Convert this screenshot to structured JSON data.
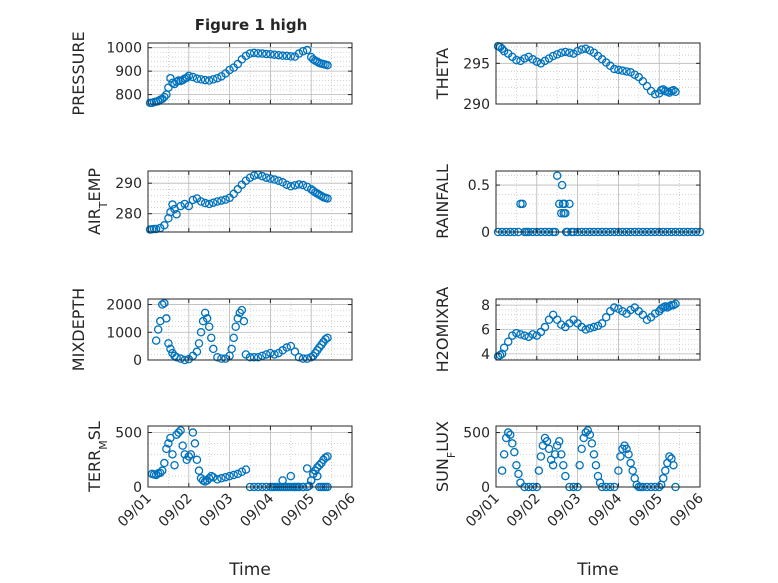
{
  "figure_title": "Figure 1 high",
  "colors": {
    "marker": "#0072bd",
    "axis": "#262626",
    "grid": "#b8b8b8",
    "background": "#ffffff"
  },
  "chart_data": [
    {
      "type": "scatter",
      "id": "pressure",
      "title": "Figure 1 high",
      "ylabel": "PRESSURE",
      "ylabel_sub": "",
      "xlabel": "",
      "ylim": [
        760,
        1020
      ],
      "yticks": [
        800,
        900,
        1000
      ],
      "ytick_labels": [
        "800",
        "900",
        "1000"
      ],
      "xlim": [
        "09/01",
        "09/06"
      ],
      "xticks": [],
      "xtick_labels": [],
      "grid": true,
      "marker": "open-circle",
      "x": [
        0.05,
        0.1,
        0.15,
        0.2,
        0.25,
        0.3,
        0.35,
        0.4,
        0.45,
        0.5,
        0.55,
        0.6,
        0.65,
        0.7,
        0.75,
        0.8,
        0.85,
        0.9,
        0.95,
        1.0,
        1.1,
        1.2,
        1.3,
        1.4,
        1.5,
        1.6,
        1.7,
        1.8,
        1.9,
        2.0,
        2.1,
        2.2,
        2.3,
        2.4,
        2.5,
        2.6,
        2.7,
        2.8,
        2.9,
        3.0,
        3.1,
        3.2,
        3.3,
        3.4,
        3.5,
        3.6,
        3.7,
        3.8,
        3.9,
        4.0,
        4.05,
        4.1,
        4.15,
        4.2,
        4.25,
        4.3,
        4.35,
        4.4
      ],
      "y": [
        765,
        765,
        768,
        770,
        772,
        778,
        782,
        790,
        800,
        830,
        870,
        850,
        845,
        855,
        860,
        858,
        862,
        868,
        872,
        880,
        875,
        868,
        865,
        862,
        860,
        865,
        870,
        878,
        890,
        905,
        915,
        930,
        950,
        965,
        975,
        978,
        976,
        975,
        973,
        972,
        970,
        968,
        966,
        965,
        963,
        962,
        975,
        985,
        990,
        960,
        950,
        945,
        940,
        935,
        932,
        930,
        928,
        925
      ]
    },
    {
      "type": "scatter",
      "id": "theta",
      "ylabel": "THETA",
      "ylabel_sub": "",
      "xlabel": "",
      "ylim": [
        290,
        297.5
      ],
      "yticks": [
        290,
        295
      ],
      "ytick_labels": [
        "290",
        "295"
      ],
      "xlim": [
        "09/01",
        "09/06"
      ],
      "xticks": [],
      "xtick_labels": [],
      "grid": true,
      "marker": "open-circle",
      "x": [
        0.05,
        0.1,
        0.15,
        0.2,
        0.3,
        0.4,
        0.5,
        0.6,
        0.7,
        0.8,
        0.9,
        1.0,
        1.1,
        1.2,
        1.3,
        1.4,
        1.5,
        1.6,
        1.7,
        1.8,
        1.9,
        2.0,
        2.1,
        2.2,
        2.3,
        2.4,
        2.5,
        2.6,
        2.7,
        2.8,
        2.9,
        3.0,
        3.1,
        3.2,
        3.3,
        3.4,
        3.5,
        3.6,
        3.7,
        3.8,
        3.9,
        4.0,
        4.05,
        4.1,
        4.15,
        4.2,
        4.25,
        4.3,
        4.35,
        4.4
      ],
      "y": [
        297.1,
        297.0,
        296.8,
        296.5,
        296.2,
        295.8,
        295.4,
        295.3,
        295.6,
        295.8,
        295.5,
        295.2,
        295.0,
        295.3,
        295.6,
        295.9,
        296.1,
        296.3,
        296.4,
        296.3,
        296.2,
        296.5,
        296.7,
        296.8,
        296.6,
        296.3,
        295.9,
        295.5,
        295.1,
        294.7,
        294.3,
        294.2,
        294.1,
        294.0,
        293.9,
        293.6,
        293.3,
        292.8,
        292.2,
        291.6,
        291.2,
        291.3,
        291.7,
        291.8,
        291.6,
        291.5,
        291.4,
        291.6,
        291.7,
        291.5
      ]
    },
    {
      "type": "scatter",
      "id": "air_temp",
      "ylabel": "AIR",
      "ylabel_sub": "T",
      "ylabel_after": "EMP",
      "xlabel": "",
      "ylim": [
        274,
        294
      ],
      "yticks": [
        280,
        290
      ],
      "ytick_labels": [
        "280",
        "290"
      ],
      "xlim": [
        "09/01",
        "09/06"
      ],
      "xticks": [],
      "xtick_labels": [],
      "grid": true,
      "marker": "open-circle",
      "x": [
        0.05,
        0.1,
        0.15,
        0.2,
        0.3,
        0.4,
        0.5,
        0.55,
        0.6,
        0.65,
        0.7,
        0.8,
        0.9,
        1.0,
        1.1,
        1.2,
        1.3,
        1.4,
        1.5,
        1.6,
        1.7,
        1.8,
        1.9,
        2.0,
        2.1,
        2.2,
        2.3,
        2.4,
        2.5,
        2.6,
        2.7,
        2.8,
        2.9,
        3.0,
        3.1,
        3.2,
        3.3,
        3.4,
        3.5,
        3.6,
        3.7,
        3.8,
        3.9,
        4.0,
        4.05,
        4.1,
        4.15,
        4.2,
        4.25,
        4.3,
        4.35,
        4.4
      ],
      "y": [
        274.8,
        274.9,
        275.0,
        275.0,
        275.3,
        276.2,
        278.5,
        280.5,
        283.0,
        281.5,
        279.8,
        282.5,
        283.2,
        282.5,
        284.5,
        285.0,
        284.0,
        283.5,
        283.2,
        283.6,
        284.0,
        284.3,
        284.6,
        285.2,
        286.5,
        288.0,
        289.5,
        290.8,
        291.8,
        292.5,
        292.8,
        292.3,
        291.8,
        291.5,
        291.2,
        290.8,
        290.3,
        289.5,
        289.0,
        289.3,
        289.6,
        289.4,
        288.8,
        288.0,
        287.5,
        287.0,
        286.6,
        286.2,
        285.8,
        285.4,
        285.2,
        285.0
      ]
    },
    {
      "type": "scatter",
      "id": "rainfall",
      "ylabel": "RAINFALL",
      "ylabel_sub": "",
      "xlabel": "",
      "ylim": [
        0,
        0.65
      ],
      "yticks": [
        0,
        0.5
      ],
      "ytick_labels": [
        "0",
        "0.5"
      ],
      "xlim": [
        "09/01",
        "09/06"
      ],
      "xticks": [],
      "xtick_labels": [],
      "grid": true,
      "marker": "open-circle",
      "x": [
        0.05,
        0.15,
        0.25,
        0.35,
        0.45,
        0.55,
        0.6,
        0.65,
        0.7,
        0.75,
        0.8,
        0.9,
        1.0,
        1.1,
        1.2,
        1.3,
        1.4,
        1.45,
        1.5,
        1.55,
        1.6,
        1.62,
        1.64,
        1.66,
        1.68,
        1.7,
        1.72,
        1.75,
        1.8,
        1.85,
        1.9,
        2.0,
        2.1,
        2.2,
        2.3,
        2.4,
        2.5,
        2.6,
        2.7,
        2.8,
        2.9,
        3.0,
        3.1,
        3.2,
        3.3,
        3.4,
        3.5,
        3.6,
        3.7,
        3.8,
        3.9,
        4.0,
        4.1,
        4.2,
        4.3,
        4.4,
        4.5,
        4.6,
        4.7,
        4.8,
        4.9,
        5.0
      ],
      "y": [
        0,
        0,
        0,
        0,
        0,
        0,
        0.3,
        0.3,
        0,
        0,
        0,
        0,
        0,
        0,
        0,
        0,
        0,
        0,
        0.6,
        0.3,
        0.2,
        0.5,
        0.3,
        0.2,
        0.3,
        0.2,
        0,
        0,
        0.3,
        0,
        0,
        0,
        0,
        0,
        0,
        0,
        0,
        0,
        0,
        0,
        0,
        0,
        0,
        0,
        0,
        0,
        0,
        0,
        0,
        0,
        0,
        0,
        0,
        0,
        0,
        0,
        0,
        0,
        0,
        0,
        0,
        0
      ]
    },
    {
      "type": "scatter",
      "id": "mixdepth",
      "ylabel": "MIXDEPTH",
      "ylabel_sub": "",
      "xlabel": "",
      "ylim": [
        0,
        2200
      ],
      "yticks": [
        0,
        1000,
        2000
      ],
      "ytick_labels": [
        "0",
        "1000",
        "2000"
      ],
      "xlim": [
        "09/01",
        "09/06"
      ],
      "xticks": [],
      "xtick_labels": [],
      "grid": true,
      "marker": "open-circle",
      "x": [
        0.2,
        0.25,
        0.3,
        0.35,
        0.4,
        0.45,
        0.5,
        0.55,
        0.6,
        0.65,
        0.7,
        0.8,
        0.9,
        1.0,
        1.1,
        1.2,
        1.25,
        1.3,
        1.35,
        1.4,
        1.45,
        1.5,
        1.55,
        1.6,
        1.7,
        1.8,
        1.9,
        2.0,
        2.05,
        2.1,
        2.15,
        2.2,
        2.25,
        2.3,
        2.35,
        2.4,
        2.5,
        2.6,
        2.7,
        2.8,
        2.9,
        3.0,
        3.1,
        3.2,
        3.3,
        3.4,
        3.5,
        3.6,
        3.7,
        3.8,
        3.9,
        4.0,
        4.05,
        4.1,
        4.15,
        4.2,
        4.25,
        4.3,
        4.35,
        4.4
      ],
      "y": [
        700,
        1100,
        1400,
        2000,
        2050,
        1500,
        600,
        400,
        250,
        150,
        100,
        50,
        0,
        30,
        150,
        300,
        600,
        1000,
        1400,
        1700,
        1500,
        1200,
        800,
        400,
        100,
        50,
        50,
        150,
        400,
        800,
        1200,
        1500,
        1700,
        1800,
        1400,
        200,
        100,
        100,
        100,
        150,
        200,
        250,
        200,
        250,
        350,
        450,
        500,
        300,
        100,
        50,
        50,
        100,
        150,
        250,
        350,
        450,
        550,
        650,
        750,
        800
      ]
    },
    {
      "type": "scatter",
      "id": "h2omixra",
      "ylabel": "H2OMIXRA",
      "ylabel_sub": "",
      "xlabel": "",
      "ylim": [
        3.5,
        8.5
      ],
      "yticks": [
        4,
        6,
        8
      ],
      "ytick_labels": [
        "4",
        "6",
        "8"
      ],
      "xlim": [
        "09/01",
        "09/06"
      ],
      "xticks": [],
      "xtick_labels": [],
      "grid": true,
      "marker": "open-circle",
      "x": [
        0.05,
        0.1,
        0.15,
        0.2,
        0.3,
        0.4,
        0.5,
        0.6,
        0.7,
        0.8,
        0.9,
        1.0,
        1.1,
        1.2,
        1.3,
        1.4,
        1.5,
        1.6,
        1.7,
        1.8,
        1.9,
        2.0,
        2.1,
        2.2,
        2.3,
        2.4,
        2.5,
        2.6,
        2.7,
        2.8,
        2.9,
        3.0,
        3.1,
        3.2,
        3.3,
        3.4,
        3.5,
        3.6,
        3.7,
        3.8,
        3.9,
        4.0,
        4.05,
        4.1,
        4.15,
        4.2,
        4.25,
        4.3,
        4.35,
        4.4
      ],
      "y": [
        3.8,
        3.9,
        4.0,
        4.5,
        5.0,
        5.5,
        5.7,
        5.6,
        5.5,
        5.4,
        5.6,
        5.5,
        5.8,
        6.2,
        6.8,
        7.2,
        6.8,
        6.4,
        6.2,
        6.5,
        6.8,
        6.5,
        6.2,
        6.0,
        6.1,
        6.2,
        6.3,
        6.5,
        7.0,
        7.5,
        7.8,
        7.7,
        7.5,
        7.3,
        7.6,
        7.8,
        7.5,
        7.2,
        6.8,
        7.0,
        7.3,
        7.5,
        7.7,
        7.8,
        7.9,
        7.8,
        7.9,
        8.0,
        8.0,
        8.1
      ]
    },
    {
      "type": "scatter",
      "id": "terr_msl",
      "ylabel": "TERR",
      "ylabel_sub": "M",
      "ylabel_after": "SL",
      "xlabel": "Time",
      "ylim": [
        0,
        560
      ],
      "yticks": [
        0,
        500
      ],
      "ytick_labels": [
        "0",
        "500"
      ],
      "xlim": [
        "09/01",
        "09/06"
      ],
      "xticks": [
        0,
        1,
        2,
        3,
        4,
        5
      ],
      "xtick_labels": [
        "09/01",
        "09/02",
        "09/03",
        "09/04",
        "09/05",
        "09/06"
      ],
      "grid": true,
      "marker": "open-circle",
      "x": [
        0.1,
        0.15,
        0.2,
        0.25,
        0.3,
        0.35,
        0.4,
        0.45,
        0.5,
        0.55,
        0.6,
        0.65,
        0.7,
        0.75,
        0.8,
        0.85,
        0.9,
        0.95,
        1.0,
        1.05,
        1.1,
        1.15,
        1.2,
        1.25,
        1.3,
        1.35,
        1.4,
        1.45,
        1.5,
        1.55,
        1.6,
        1.7,
        1.8,
        1.9,
        2.0,
        2.1,
        2.2,
        2.3,
        2.4,
        2.5,
        2.6,
        2.7,
        2.8,
        2.9,
        3.0,
        3.05,
        3.1,
        3.15,
        3.2,
        3.25,
        3.3,
        3.35,
        3.4,
        3.45,
        3.5,
        3.55,
        3.6,
        3.65,
        3.7,
        3.8,
        3.9,
        3.95,
        4.0,
        4.05,
        4.1,
        4.15,
        4.2,
        4.25,
        4.3,
        4.35,
        4.4
      ],
      "y": [
        120,
        115,
        110,
        125,
        130,
        150,
        220,
        350,
        400,
        450,
        300,
        200,
        480,
        500,
        520,
        380,
        300,
        250,
        280,
        300,
        500,
        400,
        250,
        150,
        80,
        60,
        50,
        60,
        80,
        100,
        90,
        70,
        80,
        90,
        100,
        110,
        120,
        140,
        160,
        0,
        0,
        0,
        0,
        0,
        0,
        0,
        0,
        0,
        0,
        0,
        0,
        0,
        0,
        0,
        0,
        0,
        0,
        0,
        0,
        0,
        0,
        10,
        60,
        120,
        150,
        100,
        0,
        0,
        0,
        0,
        0
      ],
      "x2": [
        3.3,
        3.5,
        3.6,
        3.7,
        3.8,
        3.9,
        4.0,
        4.05,
        4.1,
        4.15,
        4.2,
        4.25,
        4.3,
        4.35,
        4.4
      ],
      "y2": [
        60,
        100,
        0,
        0,
        0,
        170,
        60,
        120,
        150,
        180,
        200,
        220,
        250,
        270,
        280
      ]
    },
    {
      "type": "scatter",
      "id": "sun_flux",
      "ylabel": "SUN",
      "ylabel_sub": "F",
      "ylabel_after": "LUX",
      "xlabel": "Time",
      "ylim": [
        0,
        560
      ],
      "yticks": [
        0,
        500
      ],
      "ytick_labels": [
        "0",
        "500"
      ],
      "xlim": [
        "09/01",
        "09/06"
      ],
      "xticks": [
        0,
        1,
        2,
        3,
        4,
        5
      ],
      "xtick_labels": [
        "09/01",
        "09/02",
        "09/03",
        "09/04",
        "09/05",
        "09/06"
      ],
      "grid": true,
      "marker": "open-circle",
      "x": [
        0.15,
        0.2,
        0.25,
        0.3,
        0.35,
        0.4,
        0.45,
        0.5,
        0.55,
        0.6,
        0.7,
        0.8,
        0.9,
        1.0,
        1.05,
        1.1,
        1.15,
        1.2,
        1.25,
        1.3,
        1.35,
        1.4,
        1.45,
        1.5,
        1.55,
        1.6,
        1.65,
        1.7,
        1.8,
        1.9,
        2.0,
        2.05,
        2.1,
        2.15,
        2.2,
        2.25,
        2.3,
        2.35,
        2.4,
        2.45,
        2.5,
        2.55,
        2.6,
        2.7,
        2.8,
        2.9,
        3.0,
        3.05,
        3.1,
        3.15,
        3.2,
        3.25,
        3.3,
        3.35,
        3.4,
        3.45,
        3.5,
        3.55,
        3.6,
        3.7,
        3.8,
        3.9,
        4.0,
        4.05,
        4.1,
        4.15,
        4.2,
        4.25,
        4.3,
        4.35,
        4.4
      ],
      "y": [
        150,
        300,
        450,
        500,
        480,
        400,
        320,
        200,
        120,
        40,
        0,
        0,
        0,
        0,
        150,
        280,
        380,
        450,
        420,
        350,
        250,
        200,
        300,
        380,
        420,
        300,
        200,
        100,
        0,
        0,
        0,
        200,
        350,
        450,
        500,
        520,
        480,
        400,
        300,
        200,
        100,
        40,
        0,
        0,
        0,
        0,
        150,
        280,
        350,
        380,
        350,
        300,
        220,
        150,
        80,
        20,
        0,
        0,
        0,
        0,
        0,
        0,
        0,
        20,
        80,
        150,
        220,
        280,
        260,
        200,
        0
      ]
    }
  ]
}
